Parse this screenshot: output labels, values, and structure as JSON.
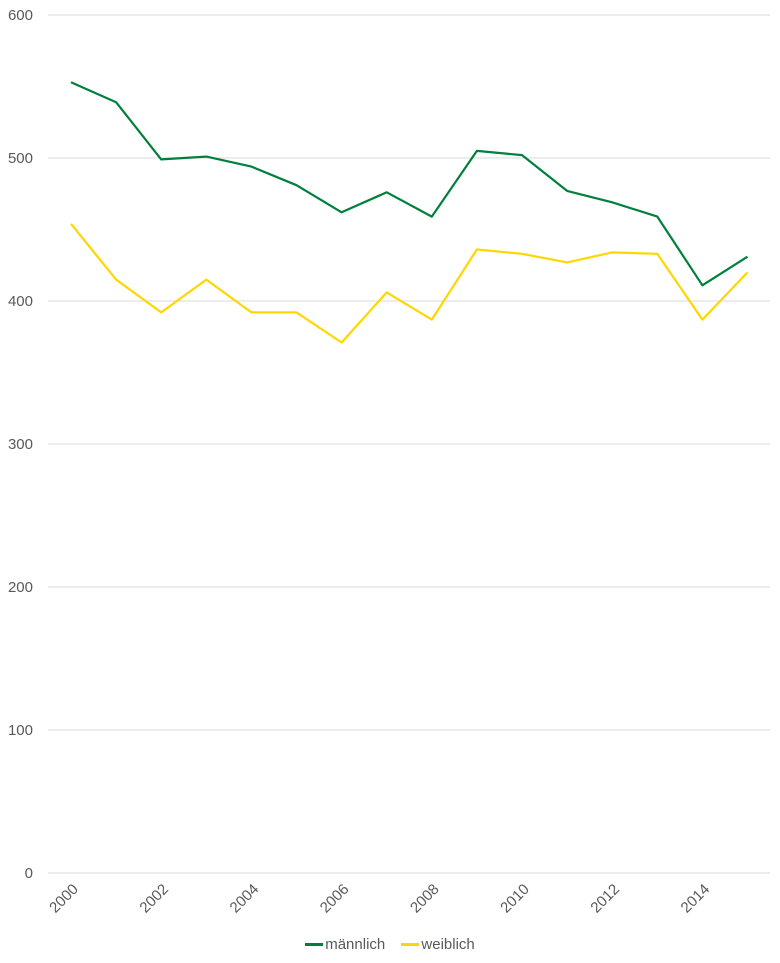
{
  "chart_data": {
    "type": "line",
    "title": "",
    "xlabel": "",
    "ylabel": "",
    "x": [
      2000,
      2001,
      2002,
      2003,
      2004,
      2005,
      2006,
      2007,
      2008,
      2009,
      2010,
      2011,
      2012,
      2013,
      2014,
      2015
    ],
    "x_tick_labels": [
      "2000",
      "2002",
      "2004",
      "2006",
      "2008",
      "2010",
      "2012",
      "2014"
    ],
    "y_tick_labels": [
      "0",
      "100",
      "200",
      "300",
      "400",
      "500",
      "600"
    ],
    "ylim": [
      0,
      600
    ],
    "grid": true,
    "legend_position": "bottom",
    "series": [
      {
        "name": "männlich",
        "color": "#00803c",
        "values": [
          553,
          539,
          499,
          501,
          494,
          481,
          462,
          476,
          459,
          505,
          502,
          477,
          469,
          459,
          411,
          431
        ]
      },
      {
        "name": "weiblich",
        "color": "#ffd700",
        "values": [
          454,
          415,
          392,
          415,
          392,
          392,
          371,
          406,
          387,
          436,
          433,
          427,
          434,
          433,
          387,
          420
        ]
      }
    ]
  },
  "legend": {
    "items": [
      {
        "label": "männlich",
        "color": "#00803c"
      },
      {
        "label": "weiblich",
        "color": "#ffd700"
      }
    ]
  }
}
